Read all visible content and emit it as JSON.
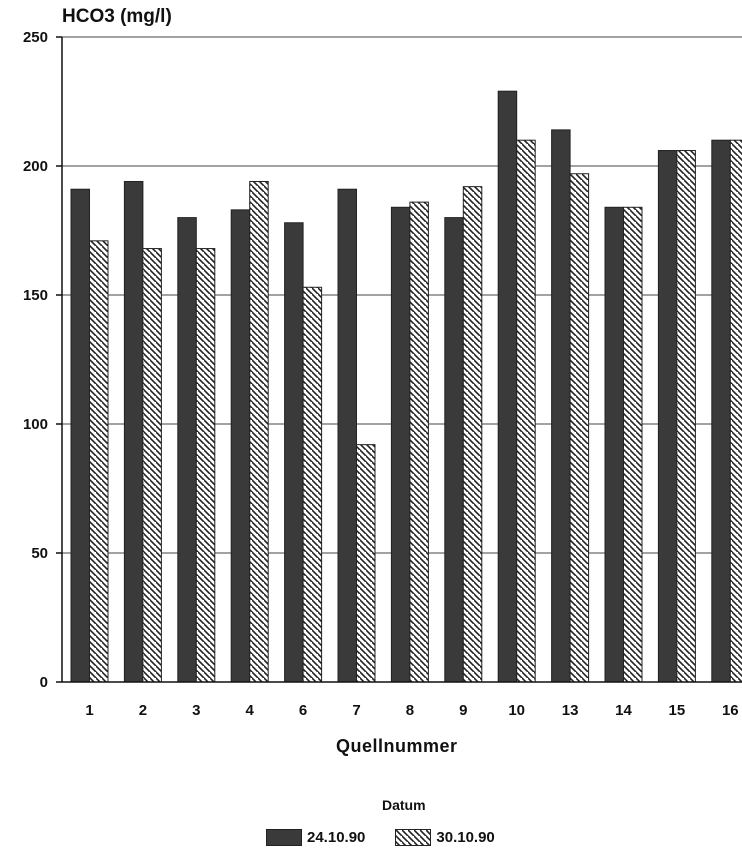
{
  "chart_data": {
    "type": "bar",
    "ylabel": "HCO3 (mg/l)",
    "xlabel": "Quellnummer",
    "categories": [
      "1",
      "2",
      "3",
      "4",
      "6",
      "7",
      "8",
      "9",
      "10",
      "13",
      "14",
      "15",
      "16"
    ],
    "series": [
      {
        "name": "24.10.90",
        "values": [
          191,
          194,
          180,
          183,
          178,
          191,
          184,
          180,
          229,
          214,
          184,
          206,
          210
        ],
        "color": "#3a3a3a",
        "fill": "solid"
      },
      {
        "name": "30.10.90",
        "values": [
          171,
          168,
          168,
          194,
          153,
          92,
          186,
          192,
          210,
          197,
          184,
          206,
          210
        ],
        "color": "#222222",
        "fill": "diagonal-hatch"
      }
    ],
    "ylim": [
      0,
      250
    ],
    "yticks": [
      0,
      50,
      100,
      150,
      200,
      250
    ],
    "grid": true,
    "legend": {
      "title": "Datum",
      "position": "bottom-center"
    }
  }
}
